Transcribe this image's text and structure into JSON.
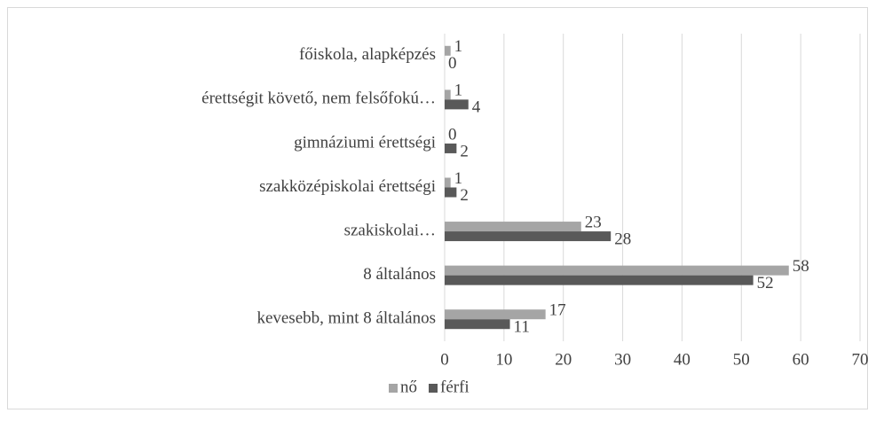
{
  "chart_data": {
    "type": "bar",
    "orientation": "horizontal",
    "categories": [
      "főiskola, alapképzés",
      "érettségit követő, nem felsőfokú…",
      "gimnáziumi érettségi",
      "szakközépiskolai érettségi",
      "szakiskolai…",
      "8 általános",
      "kevesebb, mint 8 általános"
    ],
    "series": [
      {
        "name": "nő",
        "color": "#a5a5a5",
        "values": [
          1,
          1,
          0,
          1,
          23,
          58,
          17
        ]
      },
      {
        "name": "férfi",
        "color": "#595959",
        "values": [
          0,
          4,
          2,
          2,
          28,
          52,
          11
        ]
      }
    ],
    "xlim": [
      0,
      70
    ],
    "xticks": [
      0,
      10,
      20,
      30,
      40,
      50,
      60,
      70
    ],
    "grid": true,
    "legend": "bottom"
  }
}
